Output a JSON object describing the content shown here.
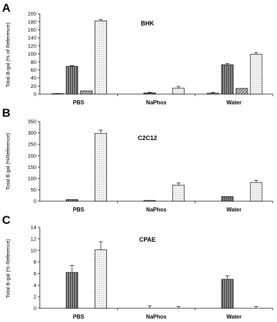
{
  "chart_data": [
    {
      "type": "bar",
      "panel": "A",
      "title": "BHK",
      "ylabel": "Total B-gal (% of Reference)",
      "categories": [
        "PBS",
        "NaPhos",
        "Water"
      ],
      "ylim": [
        0,
        200
      ],
      "yticks": [
        0,
        20,
        40,
        60,
        80,
        100,
        120,
        140,
        160,
        180,
        200
      ],
      "series": [
        {
          "values": [
            1,
            0,
            2
          ],
          "errors": [
            0.5,
            0,
            2
          ],
          "pattern": "gray"
        },
        {
          "values": [
            69,
            3,
            73
          ],
          "errors": [
            2,
            1.5,
            3
          ],
          "pattern": "vstripe"
        },
        {
          "values": [
            8,
            0,
            14
          ],
          "errors": [
            0,
            0,
            0
          ],
          "pattern": "diag"
        },
        {
          "values": [
            182,
            15,
            99
          ],
          "errors": [
            4,
            4,
            4
          ],
          "pattern": "dots"
        }
      ]
    },
    {
      "type": "bar",
      "panel": "B",
      "title": "C2C12",
      "ylabel": "Total B gal (%Reference)",
      "categories": [
        "PBS",
        "NaPhos",
        "Water"
      ],
      "ylim": [
        0,
        350
      ],
      "yticks": [
        0,
        50,
        100,
        150,
        200,
        250,
        300,
        350
      ],
      "series": [
        {
          "values": [
            0,
            0,
            0
          ],
          "errors": [
            0,
            0,
            0
          ],
          "pattern": "gray"
        },
        {
          "values": [
            7,
            3,
            20
          ],
          "errors": [
            0,
            0,
            0
          ],
          "pattern": "vstripe"
        },
        {
          "values": [
            0,
            0,
            0
          ],
          "errors": [
            0,
            0,
            0
          ],
          "pattern": "diag"
        },
        {
          "values": [
            298,
            70,
            82
          ],
          "errors": [
            14,
            10,
            10
          ],
          "pattern": "dots"
        }
      ]
    },
    {
      "type": "bar",
      "panel": "C",
      "title": "CPAE",
      "ylabel": "Total B-gal (% Reference)",
      "categories": [
        "PBS",
        "NaPhos",
        "Water"
      ],
      "ylim": [
        0,
        14
      ],
      "yticks": [
        0,
        2,
        4,
        6,
        8,
        10,
        12,
        14
      ],
      "series": [
        {
          "values": [
            0,
            0,
            0
          ],
          "errors": [
            0,
            0,
            0
          ],
          "pattern": "gray"
        },
        {
          "values": [
            6.2,
            0,
            5
          ],
          "errors": [
            1.2,
            0.4,
            0.6
          ],
          "pattern": "vstripe"
        },
        {
          "values": [
            0,
            0,
            0
          ],
          "errors": [
            0,
            0,
            0
          ],
          "pattern": "diag"
        },
        {
          "values": [
            10.1,
            0,
            0
          ],
          "errors": [
            1.4,
            0.3,
            0.3
          ],
          "pattern": "dots"
        }
      ]
    }
  ]
}
